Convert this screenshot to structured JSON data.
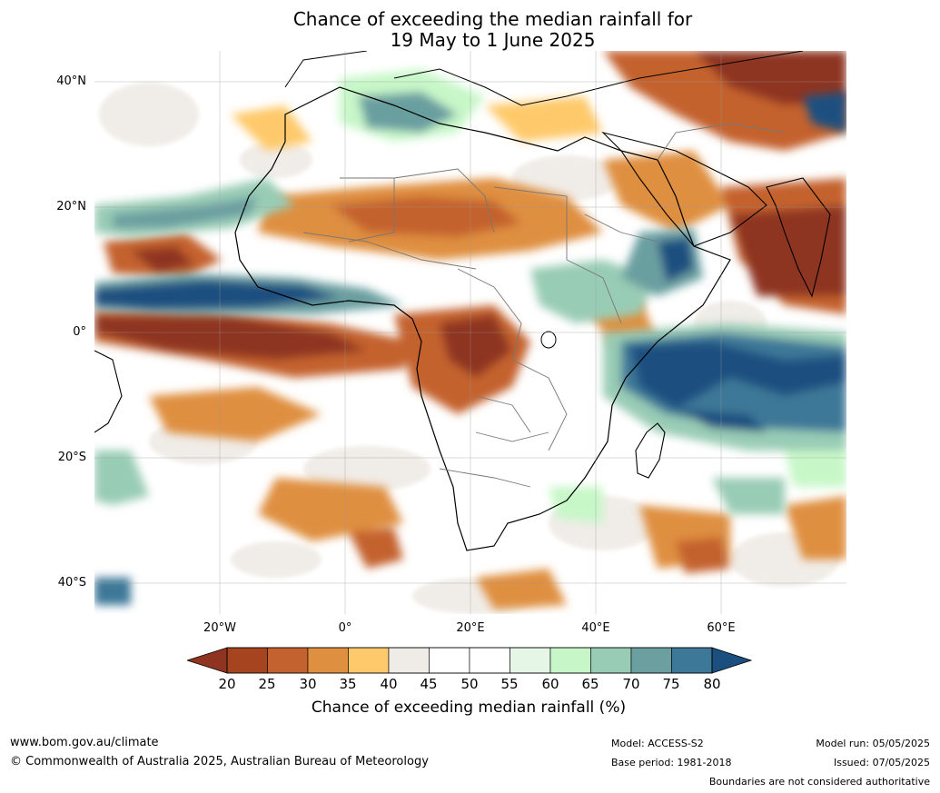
{
  "title": {
    "line1": "Chance of exceeding the median rainfall for",
    "line2": "19 May to 1 June 2025"
  },
  "axes": {
    "lat_ticks": [
      "40°N",
      "20°N",
      "0°",
      "20°S",
      "40°S"
    ],
    "lon_ticks": [
      "20°W",
      "0°",
      "20°E",
      "40°E",
      "60°E"
    ]
  },
  "colorbar": {
    "labels": [
      "20",
      "25",
      "30",
      "35",
      "40",
      "45",
      "50",
      "55",
      "60",
      "65",
      "70",
      "75",
      "80"
    ],
    "title": "Chance of exceeding median rainfall (%)",
    "colors": [
      "#8e3420",
      "#a6441f",
      "#c4622f",
      "#df8f40",
      "#fec96a",
      "#efebe6",
      "#ffffff",
      "#ffffff",
      "#e5f5e6",
      "#c7f7c8",
      "#99ccb5",
      "#6b9fa0",
      "#3d7898",
      "#1b4f80"
    ]
  },
  "footer": {
    "website": "www.bom.gov.au/climate",
    "copyright": "© Commonwealth of Australia 2025, Australian Bureau of Meteorology",
    "model": "Model: ACCESS-S2",
    "base_period": "Base period: 1981-2018",
    "model_run": "Model run: 05/05/2025",
    "issued": "Issued: 07/05/2025",
    "disclaimer": "Boundaries are not considered authoritative"
  }
}
